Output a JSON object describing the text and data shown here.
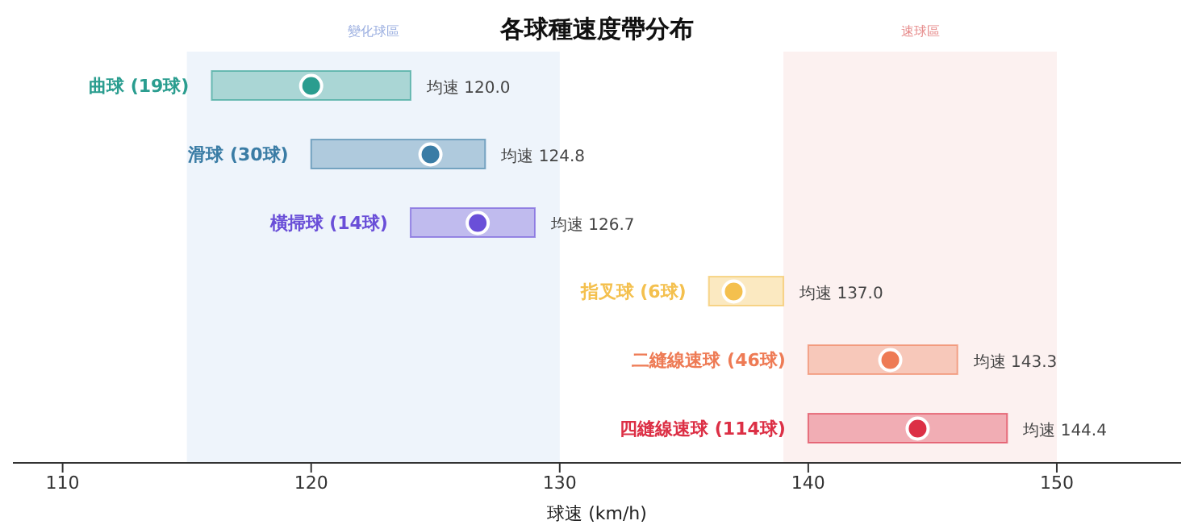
{
  "chart_data": {
    "type": "bar",
    "orientation": "horizontal",
    "title": "各球種速度帶分布",
    "xlabel": "球速 (km/h)",
    "categories": [
      "曲球 (19球)",
      "滑球 (30球)",
      "橫掃球 (14球)",
      "指叉球 (6球)",
      "二縫線速球 (46球)",
      "四縫線速球 (114球)"
    ],
    "series": [
      {
        "type": "bar",
        "base": [
          116,
          120,
          124,
          136,
          140,
          140
        ],
        "values": [
          8,
          7,
          5,
          3,
          6,
          8
        ],
        "colors": [
          "#2a9d8f",
          "#3a7ca5",
          "#6a4fd8",
          "#f4c04e",
          "#ee7b55",
          "#dc2f45"
        ]
      },
      {
        "type": "scatter",
        "values": [
          120.0,
          124.8,
          126.7,
          137.0,
          143.3,
          144.4
        ],
        "colors": [
          "#2a9d8f",
          "#3a7ca5",
          "#6a4fd8",
          "#f4c04e",
          "#ee7b55",
          "#dc2f45"
        ]
      }
    ],
    "annotations": [
      {
        "text": "均速 120.0",
        "x": 124,
        "y": "曲球 (19球)"
      },
      {
        "text": "均速 124.8",
        "x": 127,
        "y": "滑球 (30球)"
      },
      {
        "text": "均速 126.7",
        "x": 129,
        "y": "橫掃球 (14球)"
      },
      {
        "text": "均速 137.0",
        "x": 139,
        "y": "指叉球 (6球)"
      },
      {
        "text": "均速 143.3",
        "x": 146,
        "y": "二縫線速球 (46球)"
      },
      {
        "text": "均速 144.4",
        "x": 148,
        "y": "四縫線速球 (114球)"
      }
    ],
    "marker": "circle",
    "xlim": [
      108,
      155
    ],
    "xticks": [
      110,
      120,
      130,
      140,
      150
    ],
    "tick_labels": "x",
    "grid": false,
    "legend": false,
    "bands": [
      {
        "axis": "x",
        "from": 115,
        "to": 130,
        "label": "變化球區",
        "color": "#eef4fb"
      },
      {
        "axis": "x",
        "from": 139,
        "to": 150,
        "label": "速球區",
        "color": "#fcf1f0"
      }
    ]
  }
}
